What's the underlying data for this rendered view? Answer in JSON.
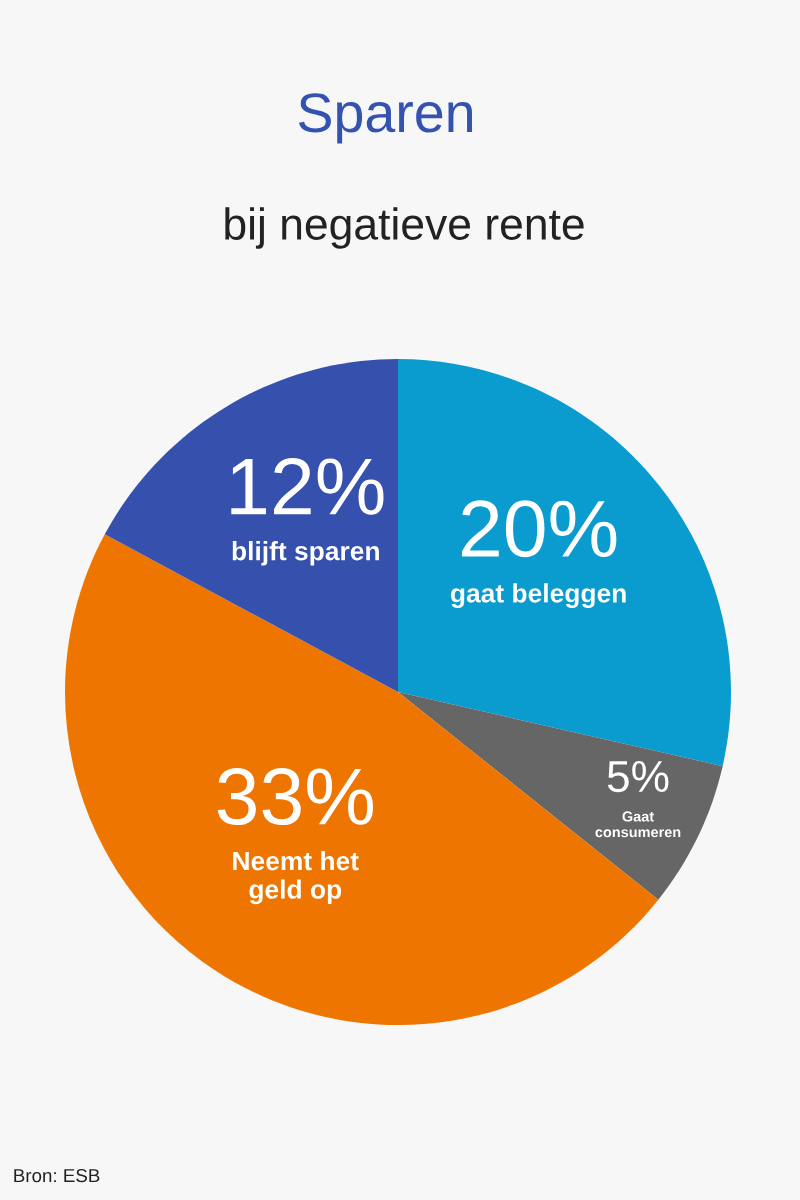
{
  "chart_data": {
    "type": "pie",
    "title": "Sparen",
    "subtitle": "bij negatieve rente",
    "categories": [
      "gaat beleggen",
      "Gaat\nconsumeren",
      "Neemt het\ngeld op",
      "blijft sparen"
    ],
    "values": [
      20,
      5,
      33,
      12
    ],
    "colors": [
      "#0a9ccf",
      "#666666",
      "#ee7500",
      "#3550ad"
    ],
    "value_labels": [
      "20%",
      "5%",
      "33%",
      "12%"
    ],
    "annotations": [
      "Bron: ESB"
    ]
  }
}
